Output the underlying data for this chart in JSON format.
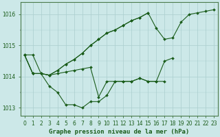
{
  "xlabel": "Graphe pression niveau de la mer (hPa)",
  "bg_color": "#cce8e8",
  "grid_color": "#aacece",
  "line_color": "#1a5c1a",
  "marker": "D",
  "marker_size": 2,
  "line_width": 0.8,
  "tick_fontsize": 5.5,
  "label_fontsize": 6.5,
  "ylim": [
    1012.75,
    1016.4
  ],
  "xlim": [
    -0.5,
    23.5
  ],
  "yticks": [
    1013,
    1014,
    1015,
    1016
  ],
  "xticks": [
    0,
    1,
    2,
    3,
    4,
    5,
    6,
    7,
    8,
    9,
    10,
    11,
    12,
    13,
    14,
    15,
    16,
    17,
    18,
    19,
    20,
    21,
    22,
    23
  ],
  "lines": [
    {
      "x": [
        0,
        1,
        2,
        3,
        4,
        5,
        6,
        7,
        8,
        9,
        10,
        11,
        12,
        13,
        14,
        15,
        16,
        17
      ],
      "y": [
        1014.7,
        1014.7,
        1014.1,
        1013.7,
        1013.5,
        1013.1,
        1013.1,
        1013.0,
        1013.2,
        1013.2,
        1013.4,
        1013.85,
        1013.85,
        1013.85,
        1013.95,
        1013.85,
        1013.85,
        1013.85
      ]
    },
    {
      "x": [
        0,
        1,
        2,
        3,
        4,
        5,
        6,
        7,
        8,
        9,
        10,
        11,
        12,
        13,
        14,
        15,
        16,
        17,
        18
      ],
      "y": [
        1014.7,
        1014.1,
        1014.1,
        1014.05,
        1014.1,
        1014.15,
        1014.2,
        1014.25,
        1014.3,
        1013.35,
        1013.85,
        1013.85,
        1013.85,
        1013.85,
        1013.95,
        1013.85,
        1013.85,
        1014.5,
        1014.6
      ]
    },
    {
      "x": [
        0,
        1,
        2,
        3,
        4,
        5,
        6,
        7,
        8,
        9,
        10,
        11,
        12,
        13,
        14,
        15
      ],
      "y": [
        1014.7,
        1014.1,
        1014.1,
        1014.05,
        1014.2,
        1014.4,
        1014.55,
        1014.75,
        1015.0,
        1015.2,
        1015.4,
        1015.5,
        1015.65,
        1015.8,
        1015.9,
        1016.05
      ]
    },
    {
      "x": [
        0,
        1,
        2,
        3,
        4,
        5,
        6,
        7,
        8,
        9,
        10,
        11,
        12,
        13,
        14,
        15,
        16,
        17,
        18,
        19,
        20,
        21,
        22,
        23
      ],
      "y": [
        1014.7,
        1014.1,
        1014.1,
        1014.05,
        1014.2,
        1014.4,
        1014.55,
        1014.75,
        1015.0,
        1015.2,
        1015.4,
        1015.5,
        1015.65,
        1015.8,
        1015.9,
        1016.05,
        1015.55,
        1015.2,
        1015.25,
        1015.75,
        1016.0,
        1016.05,
        1016.1,
        1016.15
      ]
    }
  ]
}
